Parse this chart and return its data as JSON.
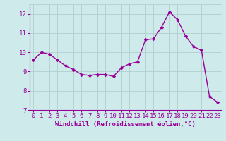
{
  "x": [
    0,
    1,
    2,
    3,
    4,
    5,
    6,
    7,
    8,
    9,
    10,
    11,
    12,
    13,
    14,
    15,
    16,
    17,
    18,
    19,
    20,
    21,
    22,
    23
  ],
  "y": [
    9.6,
    10.0,
    9.9,
    9.6,
    9.3,
    9.1,
    8.85,
    8.8,
    8.85,
    8.85,
    8.75,
    9.2,
    9.4,
    9.5,
    10.65,
    10.7,
    11.3,
    12.1,
    11.7,
    10.85,
    10.3,
    10.1,
    7.7,
    7.4
  ],
  "line_color": "#990099",
  "marker": "D",
  "marker_size": 2.2,
  "linewidth": 1.0,
  "xlabel": "Windchill (Refroidissement éolien,°C)",
  "xlim": [
    -0.5,
    23.5
  ],
  "ylim": [
    7,
    12.5
  ],
  "yticks": [
    7,
    8,
    9,
    10,
    11,
    12
  ],
  "xticks": [
    0,
    1,
    2,
    3,
    4,
    5,
    6,
    7,
    8,
    9,
    10,
    11,
    12,
    13,
    14,
    15,
    16,
    17,
    18,
    19,
    20,
    21,
    22,
    23
  ],
  "bg_color": "#ceeaea",
  "grid_color": "#aacaca",
  "tick_color": "#990099",
  "label_color": "#990099",
  "xlabel_fontsize": 6.5,
  "tick_fontsize": 6.5
}
